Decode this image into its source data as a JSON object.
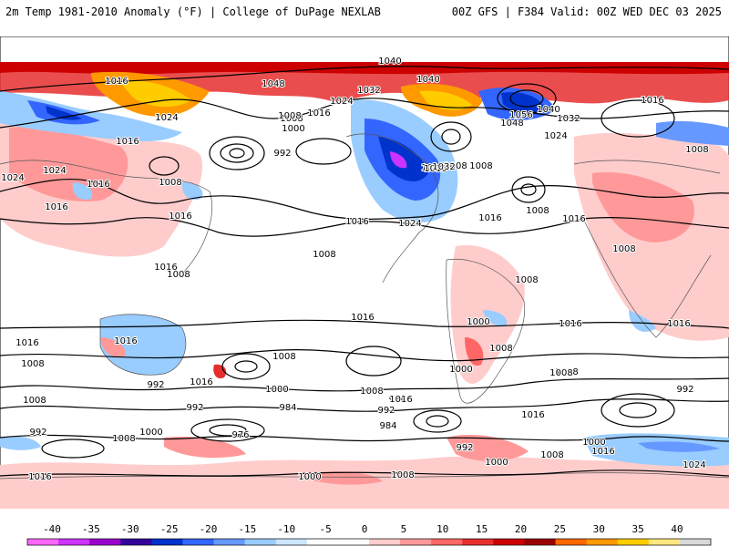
{
  "header": {
    "left": "2m Temp 1981-2010 Anomaly (°F) | College of DuPage NEXLAB",
    "right": "00Z GFS | F384 Valid: 00Z WED DEC 03 2025"
  },
  "colorbar": {
    "ticks": [
      "-40",
      "-35",
      "-30",
      "-25",
      "-20",
      "-15",
      "-10",
      "-5",
      "0",
      "5",
      "10",
      "15",
      "20",
      "25",
      "30",
      "35",
      "40"
    ],
    "colors": [
      "#ff66ff",
      "#cc33ff",
      "#9900cc",
      "#330099",
      "#0033cc",
      "#3366ff",
      "#6699ff",
      "#99ccff",
      "#cce6ff",
      "#ffffff",
      "#ffffff",
      "#ffcccc",
      "#ff9999",
      "#ff6666",
      "#e62e2e",
      "#cc0000",
      "#990000",
      "#ff6600",
      "#ff9900",
      "#ffcc00",
      "#ffe680",
      "#d9d9d9"
    ]
  },
  "pressure_labels": [
    {
      "text": "1040"
    },
    {
      "text": "1048"
    },
    {
      "text": "1040"
    },
    {
      "text": "1032"
    },
    {
      "text": "1024"
    },
    {
      "text": "1016"
    },
    {
      "text": "1024"
    },
    {
      "text": "1016"
    },
    {
      "text": "1008"
    },
    {
      "text": "1000"
    },
    {
      "text": "992"
    },
    {
      "text": "1008"
    },
    {
      "text": "1016"
    },
    {
      "text": "1024"
    },
    {
      "text": "1048"
    },
    {
      "text": "1056"
    },
    {
      "text": "1040"
    },
    {
      "text": "1032"
    },
    {
      "text": "1024"
    },
    {
      "text": "1016"
    },
    {
      "text": "1008"
    },
    {
      "text": "1008"
    },
    {
      "text": "1016"
    },
    {
      "text": "1024"
    },
    {
      "text": "1016"
    },
    {
      "text": "1008"
    },
    {
      "text": "1016"
    },
    {
      "text": "1024"
    },
    {
      "text": "1016"
    },
    {
      "text": "1008"
    },
    {
      "text": "1016"
    },
    {
      "text": "1032"
    },
    {
      "text": "1008"
    },
    {
      "text": "1024"
    },
    {
      "text": "1016"
    },
    {
      "text": "1016"
    },
    {
      "text": "1008"
    },
    {
      "text": "1008"
    },
    {
      "text": "1016"
    },
    {
      "text": "1008"
    },
    {
      "text": "1008"
    },
    {
      "text": "1016"
    },
    {
      "text": "1000"
    },
    {
      "text": "1008"
    },
    {
      "text": "1016"
    },
    {
      "text": "1016"
    },
    {
      "text": "1016"
    },
    {
      "text": "1008"
    },
    {
      "text": "1016"
    },
    {
      "text": "1008"
    },
    {
      "text": "1008"
    },
    {
      "text": "1000"
    },
    {
      "text": "1008"
    },
    {
      "text": "1016"
    },
    {
      "text": "1000"
    },
    {
      "text": "984"
    },
    {
      "text": "992"
    },
    {
      "text": "1008"
    },
    {
      "text": "1016"
    },
    {
      "text": "1008"
    },
    {
      "text": "992"
    },
    {
      "text": "992"
    },
    {
      "text": "976"
    },
    {
      "text": "984"
    },
    {
      "text": "992"
    },
    {
      "text": "984"
    },
    {
      "text": "1016"
    },
    {
      "text": "992"
    },
    {
      "text": "1008"
    },
    {
      "text": "1000"
    },
    {
      "text": "1016"
    },
    {
      "text": "1024"
    },
    {
      "text": "1016"
    },
    {
      "text": "992"
    },
    {
      "text": "1008"
    },
    {
      "text": "1000"
    },
    {
      "text": "1000"
    },
    {
      "text": "1008"
    },
    {
      "text": "1000"
    }
  ]
}
